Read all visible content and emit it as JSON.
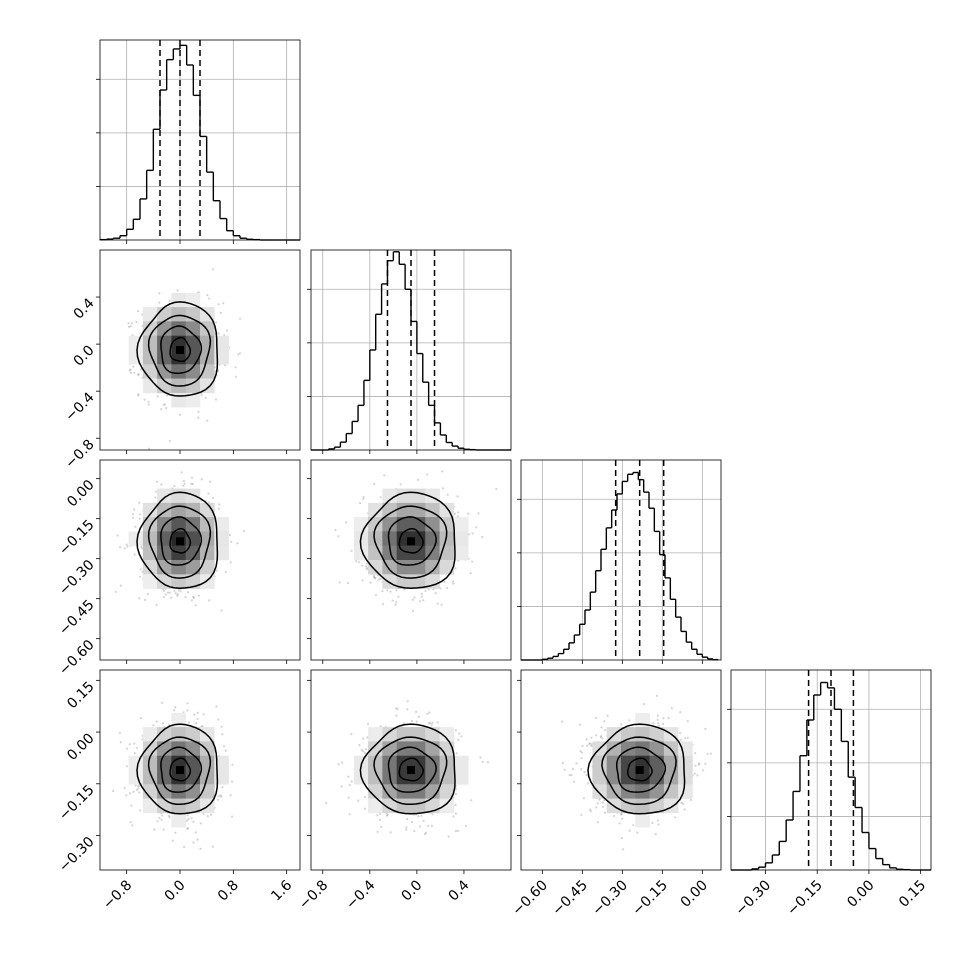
{
  "chart_data": [
    {
      "type": "histogram",
      "position": "row-0-col-0",
      "param_index": 0,
      "bin_edges": [
        -1.2,
        -1.1,
        -1.0,
        -0.9,
        -0.8,
        -0.7,
        -0.6,
        -0.5,
        -0.4,
        -0.3,
        -0.2,
        -0.1,
        0.0,
        0.1,
        0.2,
        0.3,
        0.4,
        0.5,
        0.6,
        0.7,
        0.8,
        0.9,
        1.0,
        1.1,
        1.2,
        1.3,
        1.4,
        1.5,
        1.6,
        1.7,
        1.8
      ],
      "counts": [
        0.1,
        0.25,
        0.5,
        1.2,
        3.0,
        5.8,
        11.5,
        19.5,
        31.0,
        42.0,
        50.5,
        53.5,
        54.5,
        49.0,
        40.5,
        29.0,
        19.0,
        11.0,
        6.0,
        2.6,
        1.2,
        0.5,
        0.2,
        0.1,
        0.0,
        0.0,
        0.0,
        0.0,
        0.0,
        0.0
      ],
      "quantiles": [
        -0.3,
        0.0,
        0.3
      ],
      "xlim": [
        -1.2,
        1.8
      ],
      "ylim": [
        0,
        56
      ],
      "xticks": [
        -0.8,
        0.0,
        0.8,
        1.6
      ],
      "yticks": [
        15,
        30,
        45
      ],
      "grid": true
    },
    {
      "type": "histogram",
      "position": "row-1-col-1",
      "param_index": 1,
      "bin_edges": [
        -0.9,
        -0.85,
        -0.8,
        -0.75,
        -0.7,
        -0.65,
        -0.6,
        -0.55,
        -0.5,
        -0.45,
        -0.4,
        -0.35,
        -0.3,
        -0.25,
        -0.2,
        -0.15,
        -0.1,
        -0.05,
        0.0,
        0.05,
        0.1,
        0.15,
        0.2,
        0.25,
        0.3,
        0.35,
        0.4,
        0.45,
        0.5,
        0.55,
        0.6,
        0.65,
        0.7,
        0.75,
        0.8
      ],
      "counts": [
        0,
        0,
        0,
        0.3,
        0.8,
        2.2,
        4.6,
        8.0,
        12.5,
        19.5,
        28.0,
        38.0,
        46.5,
        53.0,
        55.5,
        52.0,
        45.0,
        36.0,
        27.0,
        19.0,
        12.5,
        7.6,
        4.2,
        2.1,
        1.1,
        0.5,
        0.2,
        0.1,
        0,
        0,
        0,
        0,
        0,
        0
      ],
      "quantiles": [
        -0.25,
        -0.05,
        0.15
      ],
      "xlim": [
        -0.9,
        0.8
      ],
      "ylim": [
        0,
        56
      ],
      "xticks": [
        -0.8,
        -0.4,
        0.0,
        0.4
      ],
      "yticks": [
        15,
        30,
        45
      ],
      "grid": true
    },
    {
      "type": "histogram",
      "position": "row-2-col-2",
      "param_index": 2,
      "bin_edges": [
        -0.68,
        -0.66,
        -0.64,
        -0.62,
        -0.6,
        -0.58,
        -0.56,
        -0.54,
        -0.52,
        -0.5,
        -0.48,
        -0.46,
        -0.44,
        -0.42,
        -0.4,
        -0.38,
        -0.36,
        -0.34,
        -0.32,
        -0.3,
        -0.28,
        -0.26,
        -0.24,
        -0.22,
        -0.2,
        -0.18,
        -0.16,
        -0.14,
        -0.12,
        -0.1,
        -0.08,
        -0.06,
        -0.04,
        -0.02,
        0.0,
        0.02,
        0.04,
        0.06
      ],
      "counts": [
        0,
        0,
        0,
        0,
        0.2,
        0.5,
        1.0,
        1.8,
        3.0,
        4.8,
        7.0,
        10.0,
        14.0,
        19.0,
        25.0,
        31.0,
        37.0,
        42.0,
        46.5,
        50.0,
        52.0,
        52.5,
        50.5,
        47.0,
        42.5,
        36.0,
        29.5,
        23.0,
        17.0,
        12.0,
        8.0,
        5.0,
        3.0,
        1.6,
        0.8,
        0.3,
        0.1
      ],
      "quantiles": [
        -0.325,
        -0.235,
        -0.145
      ],
      "xlim": [
        -0.68,
        0.07
      ],
      "ylim": [
        0,
        56
      ],
      "xticks": [
        -0.6,
        -0.45,
        -0.3,
        -0.15,
        0.0
      ],
      "yticks": [
        15,
        30,
        45
      ],
      "grid": true
    },
    {
      "type": "histogram",
      "position": "row-3-col-3",
      "param_index": 3,
      "bin_edges": [
        -0.4,
        -0.38,
        -0.36,
        -0.34,
        -0.32,
        -0.3,
        -0.28,
        -0.26,
        -0.24,
        -0.22,
        -0.2,
        -0.18,
        -0.16,
        -0.14,
        -0.12,
        -0.1,
        -0.08,
        -0.06,
        -0.04,
        -0.02,
        0.0,
        0.02,
        0.04,
        0.06,
        0.08,
        0.1,
        0.12,
        0.14,
        0.16,
        0.18
      ],
      "counts": [
        0,
        0,
        0,
        0.3,
        0.8,
        2.0,
        4.2,
        8.0,
        14.0,
        22.0,
        32.0,
        42.0,
        49.0,
        52.5,
        51.0,
        45.0,
        36.0,
        26.0,
        17.5,
        10.5,
        6.0,
        3.2,
        1.5,
        0.6,
        0.2,
        0.1,
        0,
        0,
        0
      ],
      "quantiles": [
        -0.175,
        -0.11,
        -0.045
      ],
      "xlim": [
        -0.4,
        0.18
      ],
      "ylim": [
        0,
        56
      ],
      "xticks": [
        -0.3,
        -0.15,
        0.0,
        0.15
      ],
      "yticks": [
        15,
        30,
        45
      ],
      "grid": true
    },
    {
      "type": "scatter",
      "subtype": "2d-density-contour",
      "position": "row-1-col-0",
      "x_param": 0,
      "y_param": 1,
      "x_center": 0.0,
      "y_center": -0.05,
      "x_sd": 0.3,
      "y_sd": 0.2,
      "contour_levels_sd": [
        0.5,
        1.0,
        1.5,
        2.0
      ],
      "xlim": [
        -1.2,
        1.8
      ],
      "ylim": [
        -0.9,
        0.8
      ],
      "xticks": [
        -0.8,
        0.0,
        0.8,
        1.6
      ],
      "yticks": [
        -0.8,
        -0.4,
        0.0,
        0.4
      ],
      "grid": false
    },
    {
      "type": "scatter",
      "subtype": "2d-density-contour",
      "position": "row-2-col-0",
      "x_param": 0,
      "y_param": 2,
      "x_center": 0.0,
      "y_center": -0.235,
      "x_sd": 0.3,
      "y_sd": 0.09,
      "contour_levels_sd": [
        0.5,
        1.0,
        1.5,
        2.0
      ],
      "xlim": [
        -1.2,
        1.8
      ],
      "ylim": [
        -0.68,
        0.07
      ],
      "xticks": [
        -0.8,
        0.0,
        0.8,
        1.6
      ],
      "yticks": [
        -0.6,
        -0.45,
        -0.3,
        -0.15,
        0.0
      ],
      "grid": false
    },
    {
      "type": "scatter",
      "subtype": "2d-density-contour",
      "position": "row-2-col-1",
      "x_param": 1,
      "y_param": 2,
      "x_center": -0.05,
      "y_center": -0.235,
      "x_sd": 0.2,
      "y_sd": 0.09,
      "contour_levels_sd": [
        0.5,
        1.0,
        1.5,
        2.0
      ],
      "xlim": [
        -0.9,
        0.8
      ],
      "ylim": [
        -0.68,
        0.07
      ],
      "xticks": [
        -0.8,
        -0.4,
        0.0,
        0.4
      ],
      "yticks": [
        -0.6,
        -0.45,
        -0.3,
        -0.15,
        0.0
      ],
      "grid": false
    },
    {
      "type": "scatter",
      "subtype": "2d-density-contour",
      "position": "row-3-col-0",
      "x_param": 0,
      "y_param": 3,
      "x_center": 0.0,
      "y_center": -0.11,
      "x_sd": 0.3,
      "y_sd": 0.065,
      "contour_levels_sd": [
        0.5,
        1.0,
        1.5,
        2.0
      ],
      "xlim": [
        -1.2,
        1.8
      ],
      "ylim": [
        -0.4,
        0.18
      ],
      "xticks": [
        -0.8,
        0.0,
        0.8,
        1.6
      ],
      "yticks": [
        -0.3,
        -0.15,
        0.0,
        0.15
      ],
      "grid": false
    },
    {
      "type": "scatter",
      "subtype": "2d-density-contour",
      "position": "row-3-col-1",
      "x_param": 1,
      "y_param": 3,
      "x_center": -0.05,
      "y_center": -0.11,
      "x_sd": 0.2,
      "y_sd": 0.065,
      "contour_levels_sd": [
        0.5,
        1.0,
        1.5,
        2.0
      ],
      "xlim": [
        -0.9,
        0.8
      ],
      "ylim": [
        -0.4,
        0.18
      ],
      "xticks": [
        -0.8,
        -0.4,
        0.0,
        0.4
      ],
      "yticks": [
        -0.3,
        -0.15,
        0.0,
        0.15
      ],
      "grid": false
    },
    {
      "type": "scatter",
      "subtype": "2d-density-contour",
      "position": "row-3-col-2",
      "x_param": 2,
      "y_param": 3,
      "x_center": -0.235,
      "y_center": -0.11,
      "x_sd": 0.09,
      "y_sd": 0.065,
      "contour_levels_sd": [
        0.5,
        1.0,
        1.5,
        2.0
      ],
      "xlim": [
        -0.68,
        0.07
      ],
      "ylim": [
        -0.4,
        0.18
      ],
      "xticks": [
        -0.6,
        -0.45,
        -0.3,
        -0.15,
        0.0
      ],
      "yticks": [
        -0.3,
        -0.15,
        0.0,
        0.15
      ],
      "grid": false
    }
  ],
  "tick_labels": {
    "p0": [
      "−0.8",
      "0.0",
      "0.8",
      "1.6"
    ],
    "p1": [
      "−0.8",
      "−0.4",
      "0.0",
      "0.4"
    ],
    "p2": [
      "−0.60",
      "−0.45",
      "−0.30",
      "−0.15",
      "0.00"
    ],
    "p3": [
      "−0.30",
      "−0.15",
      "0.00",
      "0.15"
    ]
  },
  "colors": {
    "line": "#000000",
    "grid": "#b0b0b0",
    "scatter": "#808080"
  }
}
